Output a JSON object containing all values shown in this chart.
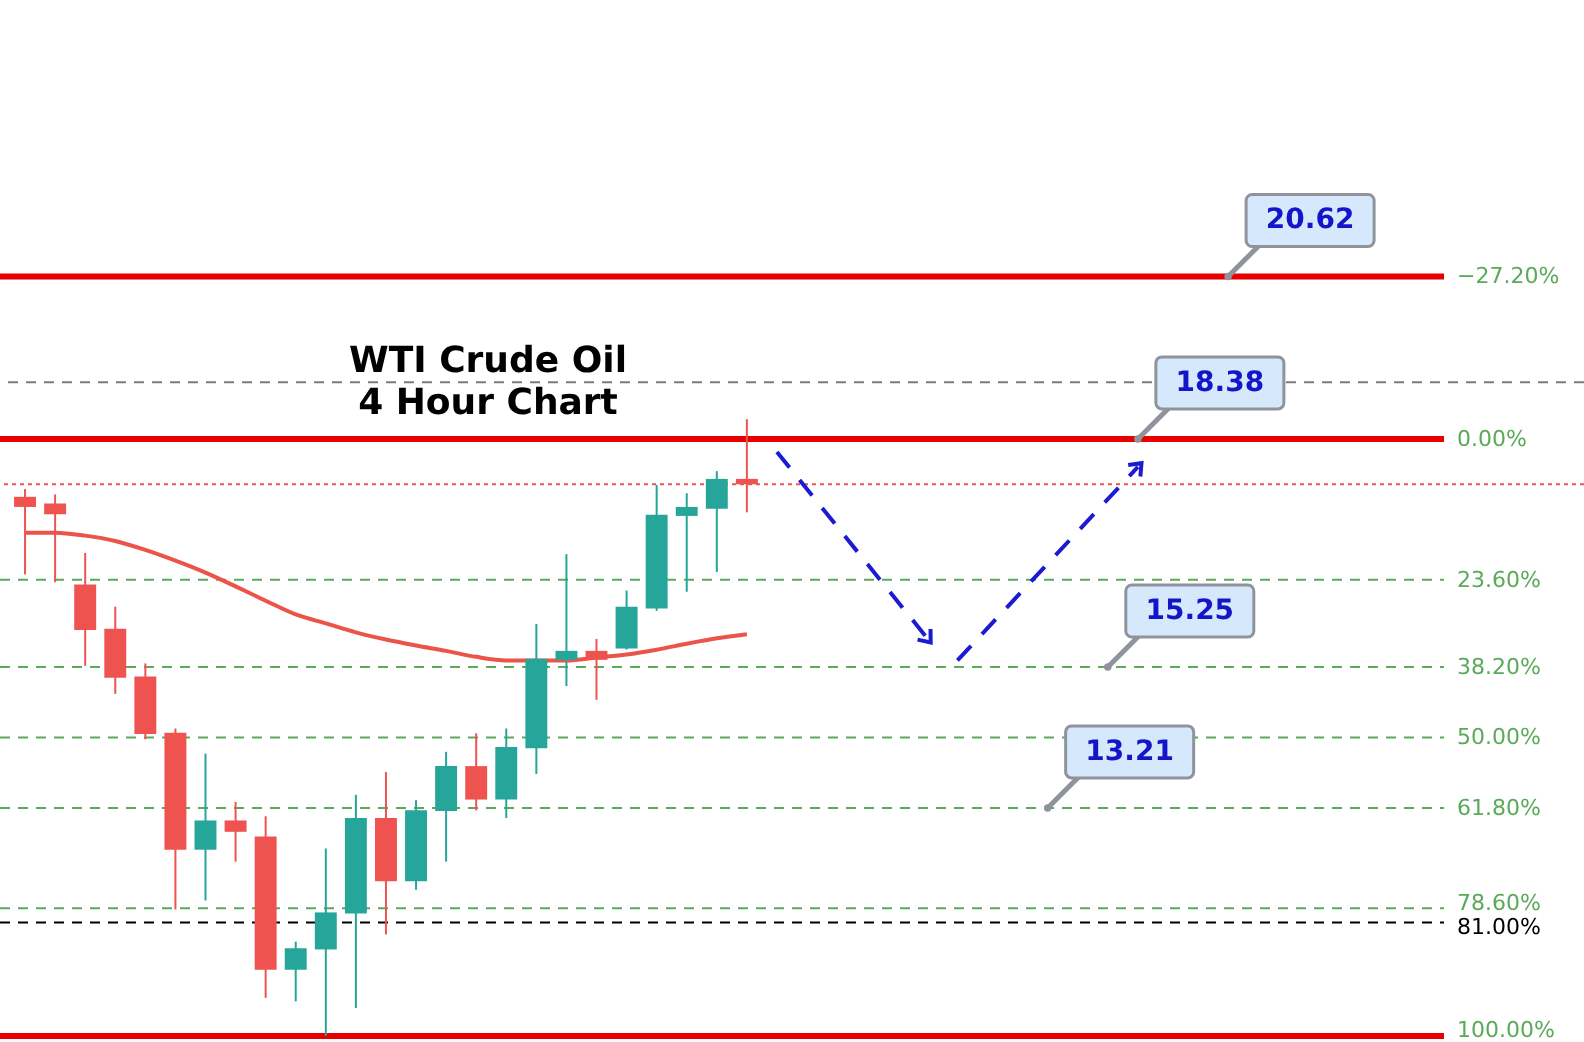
{
  "chart_data": {
    "type": "candlestick",
    "title": "WTI Crude Oil\n4 Hour Chart",
    "categories": [
      null,
      null,
      null,
      null,
      null,
      null,
      null,
      null,
      null,
      null,
      null,
      null,
      null,
      null,
      null,
      null,
      null,
      null,
      null,
      null,
      null,
      null,
      null,
      null,
      null,
      null,
      null,
      null,
      null,
      null,
      null,
      null,
      null,
      null,
      null,
      null,
      null,
      null,
      null,
      null,
      null,
      null,
      null,
      null,
      null,
      null,
      null,
      null,
      null,
      null,
      null,
      null
    ],
    "ohlc": [
      [
        9.7,
        22.7,
        8.4,
        11.4
      ],
      [
        10.8,
        24.0,
        9.3,
        12.6
      ],
      [
        24.4,
        38.0,
        19.1,
        32.0
      ],
      [
        31.8,
        42.7,
        28.1,
        40.0
      ],
      [
        39.8,
        50.3,
        37.6,
        49.4
      ],
      [
        49.2,
        78.8,
        48.5,
        68.8
      ],
      [
        68.8,
        77.3,
        52.7,
        63.9
      ],
      [
        63.9,
        70.8,
        60.8,
        65.8
      ],
      [
        66.6,
        93.6,
        63.2,
        88.9
      ],
      [
        88.9,
        94.2,
        84.2,
        85.3
      ],
      [
        85.5,
        100,
        68.6,
        79.3
      ],
      [
        79.5,
        95.3,
        59.6,
        63.5
      ],
      [
        63.5,
        83.0,
        55.8,
        74.1
      ],
      [
        74.1,
        75.5,
        60.5,
        62.2
      ],
      [
        62.3,
        70.8,
        52.4,
        54.8
      ],
      [
        54.8,
        62.2,
        49.3,
        60.4
      ],
      [
        60.4,
        63.5,
        48.5,
        51.6
      ],
      [
        51.8,
        56.1,
        31.0,
        36.8
      ],
      [
        37.0,
        41.4,
        19.3,
        35.5
      ],
      [
        35.5,
        43.7,
        33.5,
        37.0
      ],
      [
        35.1,
        35.3,
        25.4,
        28.1
      ],
      [
        28.4,
        28.8,
        7.7,
        12.7
      ],
      [
        12.9,
        25.6,
        9.1,
        11.4
      ],
      [
        11.7,
        22.3,
        5.4,
        6.7
      ],
      [
        6.7,
        12.3,
        -3.3,
        7.6
      ],
      null,
      null,
      null,
      null,
      null,
      null,
      null,
      null,
      null,
      null,
      null,
      null,
      null,
      null,
      null,
      null,
      null,
      null,
      null,
      null,
      null,
      null,
      null,
      null,
      null,
      null,
      null
    ],
    "colors": [
      "#ef5350",
      "#ef5350",
      "#ef5350",
      "#ef5350",
      "#ef5350",
      "#ef5350",
      "#26a69a",
      "#ef5350",
      "#ef5350",
      "#26a69a",
      "#26a69a",
      "#26a69a",
      "#ef5350",
      "#26a69a",
      "#26a69a",
      "#ef5350",
      "#26a69a",
      "#26a69a",
      "#26a69a",
      "#ef5350",
      "#26a69a",
      "#26a69a",
      "#26a69a",
      "#26a69a",
      "#ef5350",
      null,
      null,
      null,
      null,
      null,
      null,
      null,
      null,
      null,
      null,
      null,
      null,
      null,
      null,
      null,
      null,
      null,
      null,
      null,
      null,
      null,
      null,
      null,
      null,
      null,
      null,
      null
    ],
    "series": [
      {
        "type": "line",
        "color": "#eb5449",
        "line_style": "solid",
        "values": [
          15.7,
          15.7,
          16.2,
          17.1,
          18.6,
          20.4,
          22.4,
          24.7,
          27.1,
          29.4,
          30.9,
          32.4,
          33.6,
          34.6,
          35.5,
          36.5,
          37.1,
          null,
          37.1,
          36.6,
          36.1,
          35.3,
          34.3,
          33.4,
          32.7,
          null,
          null,
          null,
          null,
          null,
          null,
          null,
          null,
          null,
          null,
          null,
          null,
          null,
          null,
          null,
          null,
          null,
          null,
          null,
          null,
          null,
          null,
          null,
          null,
          null,
          null,
          null
        ]
      },
      {
        "type": "line",
        "color": "#1b1bd1",
        "line_style": "dashed",
        "values": [
          null,
          null,
          null,
          null,
          null,
          null,
          null,
          null,
          null,
          null,
          null,
          null,
          null,
          null,
          null,
          null,
          null,
          null,
          null,
          null,
          null,
          null,
          null,
          null,
          null,
          2.2,
          null,
          null,
          null,
          null,
          33.4,
          null,
          null,
          null,
          null,
          null,
          null,
          null,
          null,
          null,
          null,
          null,
          null,
          null,
          null,
          null,
          null,
          null,
          null,
          null,
          null,
          null
        ]
      },
      {
        "type": "line",
        "color": "#1b1bd1",
        "line_style": "dashed",
        "values": [
          null,
          null,
          null,
          null,
          null,
          null,
          null,
          null,
          null,
          null,
          null,
          null,
          null,
          null,
          null,
          null,
          null,
          null,
          null,
          null,
          null,
          null,
          null,
          null,
          null,
          null,
          null,
          null,
          null,
          null,
          null,
          37.1,
          null,
          null,
          null,
          null,
          null,
          4.7,
          null,
          null,
          null,
          null,
          null,
          null,
          null,
          null,
          null,
          null,
          null,
          null,
          null,
          null
        ]
      }
    ],
    "ylim": [
      101,
      -73.5
    ],
    "yticks": [
      {
        "value": -27.2,
        "label": "−27.20%"
      },
      {
        "value": 0,
        "label": "0.00%"
      },
      {
        "value": 23.6,
        "label": "23.60%"
      },
      {
        "value": 38.2,
        "label": "38.20%"
      },
      {
        "value": 50,
        "label": "50.00%"
      },
      {
        "value": 61.8,
        "label": "61.80%"
      },
      {
        "value": 78.6,
        "label": "78.60%"
      },
      {
        "value": 81,
        "label": "81.00%"
      },
      {
        "value": 100,
        "label": "100.00%"
      }
    ],
    "tick_labels": "y",
    "ref_lines": [
      {
        "axis": "y",
        "value": -27.2,
        "color": "#e60000",
        "line_style": "solid"
      },
      {
        "axis": "y",
        "value": 0,
        "color": "#e60000",
        "line_style": "solid"
      },
      {
        "axis": "y",
        "value": 23.6,
        "color": "#5aaa5a",
        "line_style": "dashed"
      },
      {
        "axis": "y",
        "value": 38.2,
        "color": "#5aaa5a",
        "line_style": "dashed"
      },
      {
        "axis": "y",
        "value": 50,
        "color": "#5aaa5a",
        "line_style": "dashed"
      },
      {
        "axis": "y",
        "value": 61.8,
        "color": "#5aaa5a",
        "line_style": "dashed"
      },
      {
        "axis": "y",
        "value": 78.6,
        "color": "#5aaa5a",
        "line_style": "dashed"
      },
      {
        "axis": "y",
        "value": 81,
        "color": "#000000",
        "line_style": "dashed"
      },
      {
        "axis": "y",
        "value": 100,
        "color": "#e60000",
        "line_style": "solid"
      },
      {
        "axis": "y",
        "value": 7.6,
        "color": "#ef5350",
        "line_style": "dotted"
      },
      {
        "axis": "y",
        "value": -9.5,
        "color": "#787b86",
        "line_style": "dashed"
      }
    ],
    "annotations": [
      {
        "text": "20.62",
        "y": -27.2
      },
      {
        "text": "18.38",
        "y": 0
      },
      {
        "text": "15.25",
        "y": 38.2
      },
      {
        "text": "13.21",
        "y": 61.8
      }
    ]
  }
}
